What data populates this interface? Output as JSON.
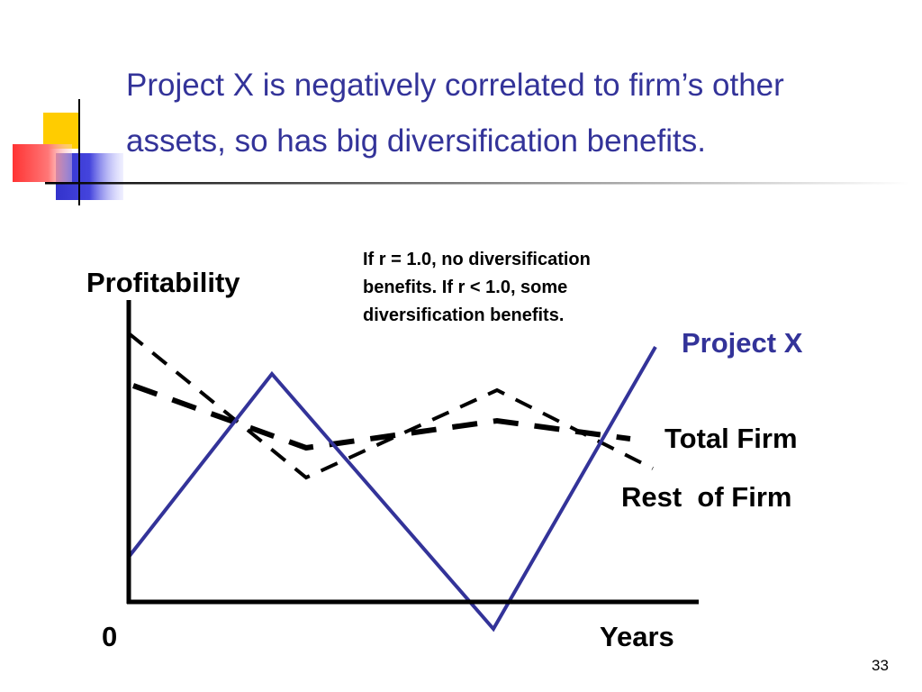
{
  "title": [
    "Project X is negatively correlated to firm’s other",
    "assets, so has big diversification benefits."
  ],
  "chart": {
    "y_label": "Profitability",
    "x_label": "Years",
    "origin_label": "0",
    "note": [
      "If r = 1.0, no diversification",
      "benefits. If r < 1.0, some",
      "diversification benefits."
    ],
    "lines": [
      "Project X",
      "Total Firm",
      "Rest  of Firm"
    ]
  },
  "page_number": "33"
}
